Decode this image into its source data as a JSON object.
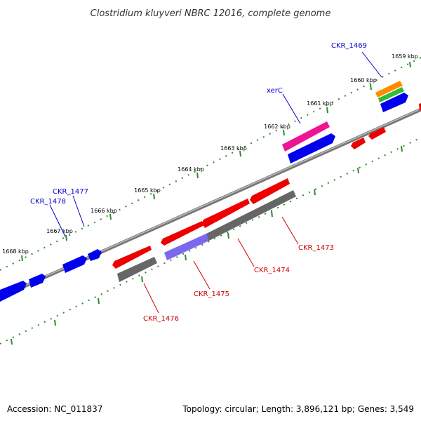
{
  "title": "Clostridium kluyveri NBRC 12016, complete genome",
  "footer": {
    "accession": "Accession: NC_011837",
    "topology": "Topology: circular; Length: 3,896,121 bp; Genes: 3,549"
  },
  "colors": {
    "backbone": "#888888",
    "tick": "#2e8b2e",
    "forward_gene": "#0000ee",
    "reverse_gene": "#ee0000",
    "pseudo_gene": "#666666",
    "rna_gene": "#ee1493",
    "orange_gene": "#ff8c00",
    "green_gene": "#33bb33",
    "purple_gene": "#7b68ee",
    "forward_label": "#0000cc",
    "reverse_label": "#cc0000"
  },
  "kbp_labels": [
    "1659 kbp",
    "1660 kbp",
    "1661 kbp",
    "1662 kbp",
    "1663 kbp",
    "1664 kbp",
    "1665 kbp",
    "1666 kbp",
    "1667 kbp",
    "1668 kbp"
  ],
  "gene_labels": {
    "forward": [
      "CKR_1469",
      "xerC",
      "CKR_1477",
      "CKR_1478"
    ],
    "reverse": [
      "CKR_1473",
      "CKR_1474",
      "CKR_1475",
      "CKR_1476"
    ]
  }
}
